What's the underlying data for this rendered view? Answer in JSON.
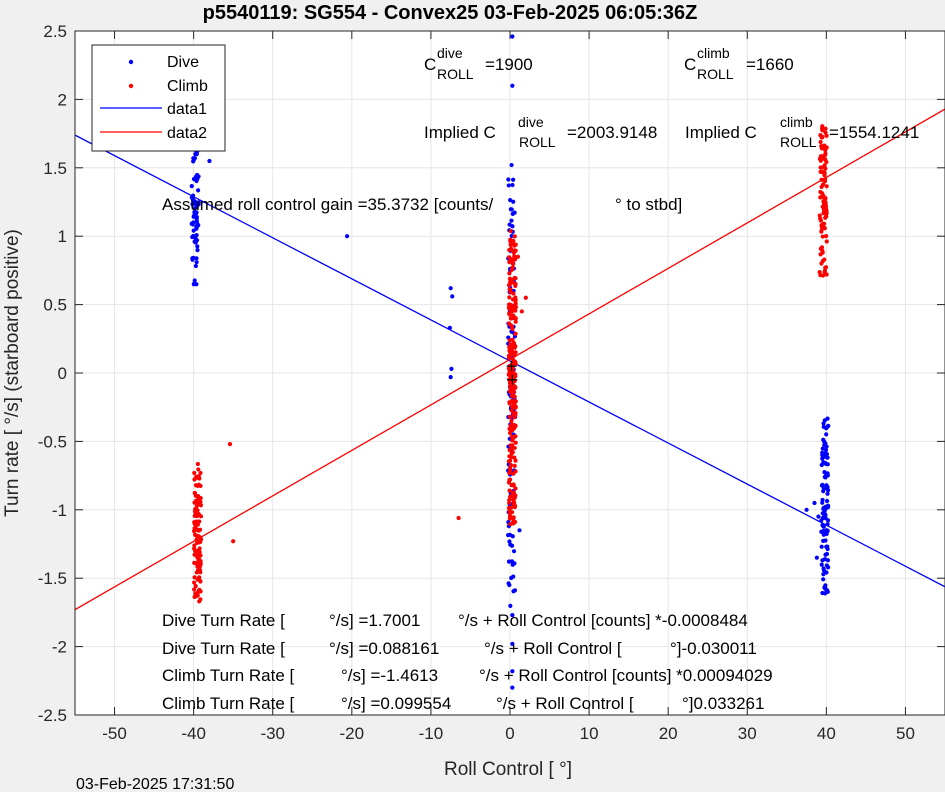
{
  "chart_data": {
    "type": "scatter",
    "title": "p5540119: SG554 - Convex25 03-Feb-2025 06:05:36Z",
    "xlabel": "Roll Control [   °]",
    "ylabel": "Turn rate [   °/s] (starboard positive)",
    "xlim": [
      -55,
      55
    ],
    "ylim": [
      -2.5,
      2.5
    ],
    "x_ticks": [
      -50,
      -40,
      -30,
      -20,
      -10,
      0,
      10,
      20,
      30,
      40,
      50
    ],
    "y_ticks": [
      -2.5,
      -2,
      -1.5,
      -1,
      -0.5,
      0,
      0.5,
      1,
      1.5,
      2,
      2.5
    ],
    "grid": true,
    "legend_position": "top-left",
    "legend": [
      "Dive",
      "Climb",
      "data1",
      "data2"
    ],
    "colors": {
      "dive": "#0000ff",
      "climb": "#ff0000"
    },
    "series": [
      {
        "name": "Dive",
        "kind": "points",
        "color": "#0000ff",
        "clusters": [
          {
            "x": -39.8,
            "y_min": 0.64,
            "y_max": 1.86,
            "count": 90
          },
          {
            "x": 0.2,
            "y_min": -1.72,
            "y_max": 1.45,
            "count": 110
          },
          {
            "x": 39.8,
            "y_min": -1.62,
            "y_max": -0.33,
            "count": 110
          }
        ],
        "points": [
          [
            -20.6,
            1.0
          ],
          [
            -7.5,
            0.62
          ],
          [
            -7.3,
            0.56
          ],
          [
            -7.6,
            0.33
          ],
          [
            -7.4,
            0.03
          ],
          [
            -7.5,
            -0.03
          ],
          [
            -38.0,
            1.55
          ],
          [
            0.3,
            2.46
          ],
          [
            0.3,
            2.1
          ],
          [
            0.3,
            -1.77
          ],
          [
            0.3,
            -1.98
          ],
          [
            0.3,
            -2.18
          ],
          [
            0.3,
            -2.3
          ],
          [
            0.2,
            1.52
          ],
          [
            37.5,
            -1.0
          ],
          [
            38.5,
            -0.95
          ],
          [
            39.0,
            -1.05
          ],
          [
            38.8,
            -1.35
          ],
          [
            1.2,
            -1.15
          ]
        ]
      },
      {
        "name": "Climb",
        "kind": "points",
        "color": "#ff0000",
        "clusters": [
          {
            "x": -39.5,
            "y_min": -1.67,
            "y_max": -0.62,
            "count": 110
          },
          {
            "x": 0.3,
            "y_min": -1.11,
            "y_max": 1.05,
            "count": 260
          },
          {
            "x": 39.6,
            "y_min": 0.71,
            "y_max": 1.93,
            "count": 100
          }
        ],
        "points": [
          [
            -35.4,
            -0.52
          ],
          [
            -35.0,
            -1.23
          ],
          [
            -6.5,
            -1.06
          ],
          [
            1.0,
            0.85
          ],
          [
            2.0,
            0.55
          ],
          [
            1.5,
            0.45
          ]
        ]
      },
      {
        "name": "data1",
        "kind": "line",
        "color": "#0000ff",
        "slope": -0.030011,
        "intercept": 0.088161
      },
      {
        "name": "data2",
        "kind": "line",
        "color": "#ff0000",
        "slope": 0.033261,
        "intercept": 0.099554
      }
    ],
    "annotations": {
      "c_dive_prefix": "C",
      "c_dive_sup": "dive",
      "c_dive_sub": "ROLL",
      "c_dive_value": "=1900",
      "c_climb_prefix": "C",
      "c_climb_sup": "climb",
      "c_climb_sub": "ROLL",
      "c_climb_value": "=1660",
      "implied_dive_prefix": "Implied C",
      "implied_dive_sup": "dive",
      "implied_dive_sub": "ROLL",
      "implied_dive_value": "=2003.9148",
      "implied_climb_prefix": "Implied C",
      "implied_climb_sup": "climb",
      "implied_climb_sub": "ROLL",
      "implied_climb_value": "=1554.1241",
      "gain_a": "Assumed roll control gain =35.3732 [counts/",
      "gain_b": "° to stbd]",
      "fit1_a": "Dive Turn Rate [",
      "fit1_b": "°/s] =1.7001",
      "fit1_c": "°/s + Roll Control [counts] *-0.0008484",
      "fit2_a": "Dive Turn Rate [",
      "fit2_b": "°/s] =0.088161",
      "fit2_c": "°/s + Roll Control [",
      "fit2_d": "°]-0.030011",
      "fit3_a": "Climb Turn Rate [",
      "fit3_b": "°/s] =-1.4613",
      "fit3_c": "°/s + Roll Control [counts] *0.00094029",
      "fit4_a": "Climb Turn Rate [",
      "fit4_b": "°/s] =0.099554",
      "fit4_c": "°/s + Roll Control [",
      "fit4_d": "°]0.033261"
    }
  },
  "timestamp": "03-Feb-2025 17:31:50"
}
